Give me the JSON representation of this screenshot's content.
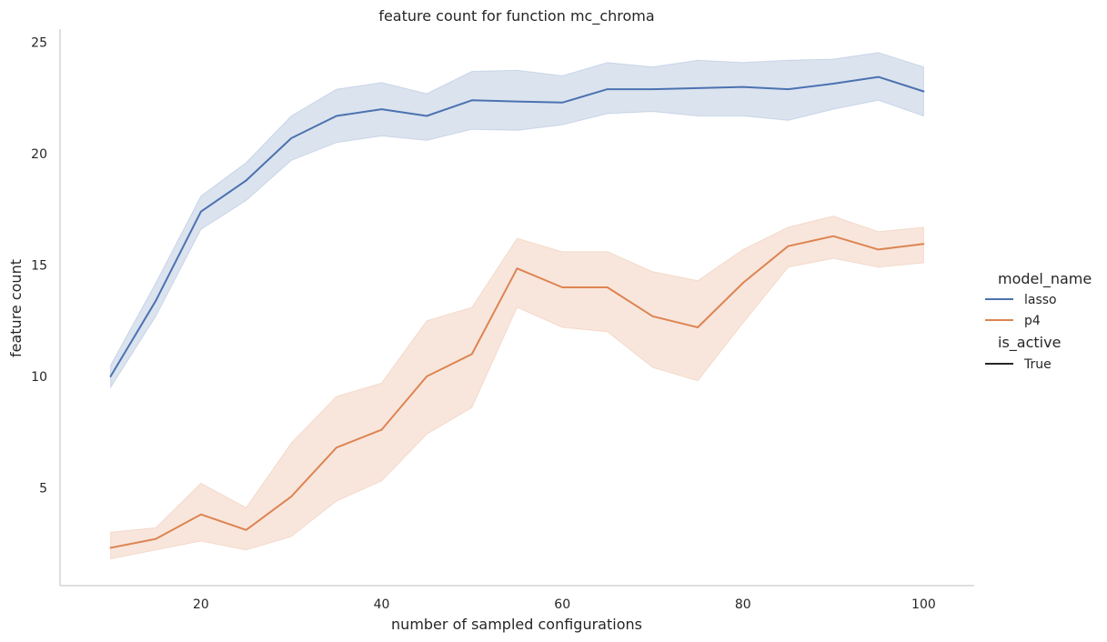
{
  "chart_data": {
    "type": "line",
    "title": "feature count for function mc_chroma",
    "xlabel": "number of sampled configurations",
    "ylabel": "feature count",
    "xlim": [
      4.4,
      105.6
    ],
    "ylim": [
      0.6,
      25.6
    ],
    "xticks": [
      20,
      40,
      60,
      80,
      100
    ],
    "yticks": [
      5,
      10,
      15,
      20,
      25
    ],
    "grid": false,
    "legend_placement": "right",
    "legend": {
      "hue_title": "model_name",
      "hue_entries": [
        "lasso",
        "p4"
      ],
      "style_title": "is_active",
      "style_entries": [
        "True"
      ]
    },
    "series": [
      {
        "name": "lasso",
        "color": "#4c72b0",
        "x": [
          10,
          15,
          20,
          25,
          30,
          35,
          40,
          45,
          50,
          55,
          60,
          65,
          70,
          75,
          80,
          85,
          90,
          95,
          100
        ],
        "y": [
          10.0,
          13.4,
          17.4,
          18.8,
          20.7,
          21.7,
          22.0,
          21.7,
          22.4,
          22.35,
          22.3,
          22.9,
          22.9,
          22.95,
          23.0,
          22.9,
          23.15,
          23.45,
          22.8
        ],
        "ci_low": [
          9.5,
          12.7,
          16.6,
          17.9,
          19.7,
          20.5,
          20.8,
          20.6,
          21.1,
          21.05,
          21.3,
          21.8,
          21.9,
          21.7,
          21.7,
          21.5,
          22.0,
          22.4,
          21.7
        ],
        "ci_high": [
          10.5,
          14.2,
          18.1,
          19.6,
          21.7,
          22.9,
          23.2,
          22.7,
          23.7,
          23.75,
          23.5,
          24.1,
          23.9,
          24.2,
          24.1,
          24.2,
          24.25,
          24.55,
          23.9
        ]
      },
      {
        "name": "p4",
        "color": "#dd8452",
        "x": [
          10,
          15,
          20,
          25,
          30,
          35,
          40,
          45,
          50,
          55,
          60,
          65,
          70,
          75,
          80,
          85,
          90,
          95,
          100
        ],
        "y": [
          2.3,
          2.7,
          3.8,
          3.1,
          4.6,
          6.8,
          7.6,
          10.0,
          11.0,
          14.85,
          14.0,
          14.0,
          12.7,
          12.2,
          14.2,
          15.85,
          16.3,
          15.7,
          15.95
        ],
        "ci_low": [
          1.8,
          2.2,
          2.6,
          2.2,
          2.8,
          4.4,
          5.3,
          7.4,
          8.6,
          13.1,
          12.2,
          12.0,
          10.4,
          9.8,
          12.4,
          14.9,
          15.3,
          14.9,
          15.1
        ],
        "ci_high": [
          3.0,
          3.2,
          5.2,
          4.1,
          7.0,
          9.1,
          9.7,
          12.5,
          13.1,
          16.2,
          15.6,
          15.6,
          14.7,
          14.3,
          15.7,
          16.7,
          17.2,
          16.5,
          16.7
        ]
      }
    ]
  }
}
